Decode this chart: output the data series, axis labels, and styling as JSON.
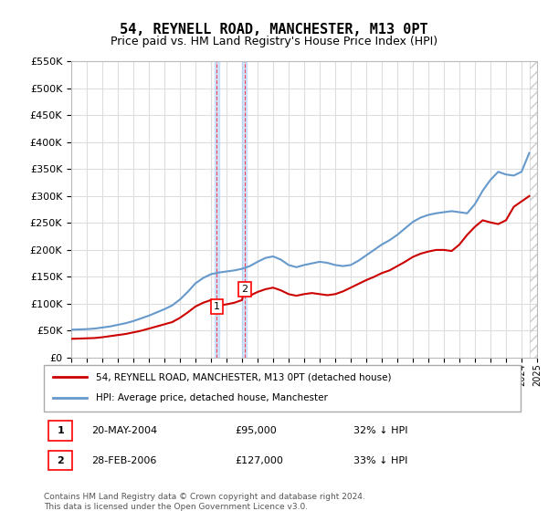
{
  "title": "54, REYNELL ROAD, MANCHESTER, M13 0PT",
  "subtitle": "Price paid vs. HM Land Registry's House Price Index (HPI)",
  "legend_property": "54, REYNELL ROAD, MANCHESTER, M13 0PT (detached house)",
  "legend_hpi": "HPI: Average price, detached house, Manchester",
  "footnote": "Contains HM Land Registry data © Crown copyright and database right 2024.\nThis data is licensed under the Open Government Licence v3.0.",
  "transactions": [
    {
      "num": 1,
      "date": "20-MAY-2004",
      "price": 95000,
      "pct": "32% ↓ HPI",
      "year": 2004.38
    },
    {
      "num": 2,
      "date": "28-FEB-2006",
      "price": 127000,
      "pct": "33% ↓ HPI",
      "year": 2006.16
    }
  ],
  "property_color": "#cc0000",
  "hpi_color": "#6699cc",
  "background_color": "#ffffff",
  "grid_color": "#dddddd",
  "transaction_shade_color": "#aaccff",
  "ylim": [
    0,
    550000
  ],
  "xlim_start": 1995,
  "xlim_end": 2025,
  "hpi_data": {
    "years": [
      1995,
      1995.5,
      1996,
      1996.5,
      1997,
      1997.5,
      1998,
      1998.5,
      1999,
      1999.5,
      2000,
      2000.5,
      2001,
      2001.5,
      2002,
      2002.5,
      2003,
      2003.5,
      2004,
      2004.5,
      2005,
      2005.5,
      2006,
      2006.5,
      2007,
      2007.5,
      2008,
      2008.5,
      2009,
      2009.5,
      2010,
      2010.5,
      2011,
      2011.5,
      2012,
      2012.5,
      2013,
      2013.5,
      2014,
      2014.5,
      2015,
      2015.5,
      2016,
      2016.5,
      2017,
      2017.5,
      2018,
      2018.5,
      2019,
      2019.5,
      2020,
      2020.5,
      2021,
      2021.5,
      2022,
      2022.5,
      2023,
      2023.5,
      2024,
      2024.5
    ],
    "values": [
      52000,
      52500,
      53000,
      54000,
      56000,
      58000,
      61000,
      64000,
      68000,
      73000,
      78000,
      84000,
      90000,
      97000,
      108000,
      122000,
      138000,
      148000,
      155000,
      158000,
      160000,
      162000,
      165000,
      170000,
      178000,
      185000,
      188000,
      182000,
      172000,
      168000,
      172000,
      175000,
      178000,
      176000,
      172000,
      170000,
      172000,
      180000,
      190000,
      200000,
      210000,
      218000,
      228000,
      240000,
      252000,
      260000,
      265000,
      268000,
      270000,
      272000,
      270000,
      268000,
      285000,
      310000,
      330000,
      345000,
      340000,
      338000,
      345000,
      380000
    ]
  },
  "property_data": {
    "years": [
      1995,
      1995.5,
      1996,
      1996.5,
      1997,
      1997.5,
      1998,
      1998.5,
      1999,
      1999.5,
      2000,
      2000.5,
      2001,
      2001.5,
      2002,
      2002.5,
      2003,
      2003.5,
      2004,
      2004.38,
      2004.5,
      2005,
      2005.5,
      2006,
      2006.16,
      2006.5,
      2007,
      2007.5,
      2008,
      2008.5,
      2009,
      2009.5,
      2010,
      2010.5,
      2011,
      2011.5,
      2012,
      2012.5,
      2013,
      2013.5,
      2014,
      2014.5,
      2015,
      2015.5,
      2016,
      2016.5,
      2017,
      2017.5,
      2018,
      2018.5,
      2019,
      2019.5,
      2020,
      2020.5,
      2021,
      2021.5,
      2022,
      2022.5,
      2023,
      2023.5,
      2024,
      2024.5
    ],
    "values": [
      35000,
      35500,
      36000,
      36500,
      38000,
      40000,
      42000,
      44000,
      47000,
      50000,
      54000,
      58000,
      62000,
      66000,
      74000,
      84000,
      95000,
      102000,
      107000,
      95000,
      97000,
      99000,
      102000,
      107000,
      127000,
      115000,
      122000,
      127000,
      130000,
      125000,
      118000,
      115000,
      118000,
      120000,
      118000,
      116000,
      118000,
      123000,
      130000,
      137000,
      144000,
      150000,
      157000,
      162000,
      170000,
      178000,
      187000,
      193000,
      197000,
      200000,
      200000,
      198000,
      210000,
      228000,
      243000,
      255000,
      251000,
      248000,
      255000,
      280000,
      290000,
      300000
    ]
  }
}
